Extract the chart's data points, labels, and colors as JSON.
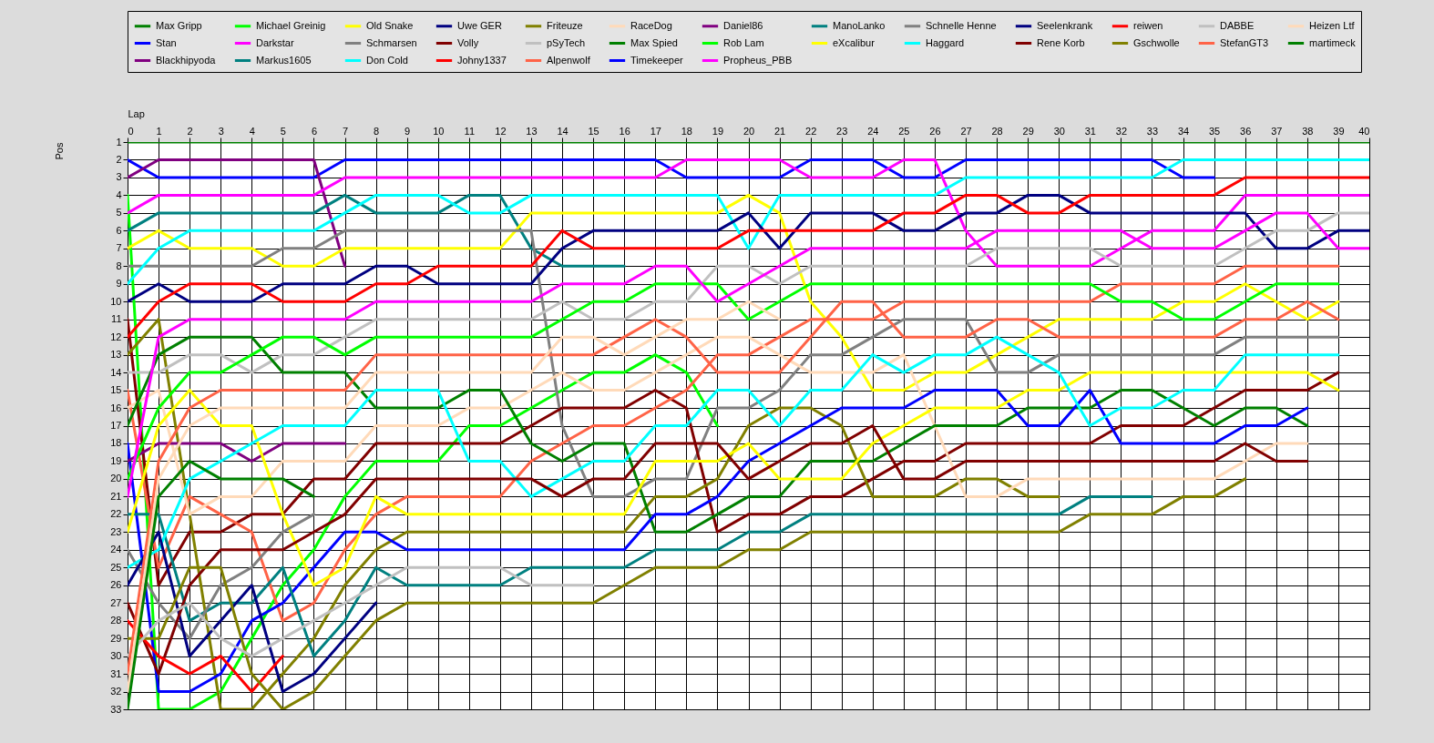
{
  "chart_data": {
    "type": "line",
    "xlabel": "Lap",
    "ylabel": "Pos",
    "x": [
      0,
      1,
      2,
      3,
      4,
      5,
      6,
      7,
      8,
      9,
      10,
      11,
      12,
      13,
      14,
      15,
      16,
      17,
      18,
      19,
      20,
      21,
      22,
      23,
      24,
      25,
      26,
      27,
      28,
      29,
      30,
      31,
      32,
      33,
      34,
      35,
      36,
      37,
      38,
      39,
      40
    ],
    "xlim": [
      0,
      40
    ],
    "xticks": [
      0,
      1,
      2,
      3,
      4,
      5,
      6,
      7,
      8,
      9,
      10,
      11,
      12,
      13,
      14,
      15,
      16,
      17,
      18,
      19,
      20,
      21,
      22,
      23,
      24,
      25,
      26,
      27,
      28,
      29,
      30,
      31,
      32,
      33,
      34,
      35,
      36,
      37,
      38,
      39,
      40
    ],
    "ylim": [
      33,
      1
    ],
    "yticks": [
      1,
      2,
      3,
      4,
      5,
      6,
      7,
      8,
      9,
      10,
      11,
      12,
      13,
      14,
      15,
      16,
      17,
      18,
      19,
      20,
      21,
      22,
      23,
      24,
      25,
      26,
      27,
      28,
      29,
      30,
      31,
      32,
      33
    ],
    "grid": true,
    "legend": "top",
    "series": [
      {
        "name": "Max Gripp",
        "color": "#008000",
        "values": [
          1,
          1,
          1,
          1,
          1,
          1,
          1,
          1,
          1,
          1,
          1,
          1,
          1,
          1,
          1,
          1,
          1,
          1,
          1,
          1,
          1,
          1,
          1,
          1,
          1,
          1,
          1,
          1,
          1,
          1,
          1,
          1,
          1,
          1,
          1,
          1,
          1,
          1,
          1,
          1,
          1
        ]
      },
      {
        "name": "Stan",
        "color": "#0000ff",
        "values": [
          2,
          3,
          3,
          3,
          3,
          3,
          3,
          2,
          2,
          2,
          2,
          2,
          2,
          2,
          2,
          2,
          2,
          2,
          3,
          3,
          3,
          3,
          2,
          2,
          2,
          3,
          3,
          2,
          2,
          2,
          2,
          2,
          2,
          2,
          3,
          3,
          null,
          null,
          null,
          null,
          null
        ]
      },
      {
        "name": "Blackhipyoda",
        "color": "#800080",
        "values": [
          3,
          2,
          2,
          2,
          2,
          2,
          2,
          8,
          null,
          null,
          null,
          null,
          null,
          null,
          null,
          null,
          null,
          null,
          null,
          null,
          null,
          null,
          null,
          null,
          null,
          null,
          null,
          null,
          null,
          null,
          null,
          null,
          null,
          null,
          null,
          null,
          null,
          null,
          null,
          null,
          null
        ]
      },
      {
        "name": "Michael Greinig",
        "color": "#00ff00",
        "values": [
          4,
          33,
          33,
          32,
          29,
          26,
          24,
          21,
          19,
          19,
          19,
          17,
          17,
          16,
          15,
          14,
          14,
          13,
          14,
          17,
          null,
          null,
          null,
          null,
          null,
          null,
          null,
          null,
          null,
          null,
          null,
          null,
          null,
          null,
          null,
          null,
          null,
          null,
          null,
          null,
          null
        ]
      },
      {
        "name": "Darkstar",
        "color": "#ff00ff",
        "values": [
          5,
          4,
          4,
          4,
          4,
          4,
          4,
          3,
          3,
          3,
          3,
          3,
          3,
          3,
          3,
          3,
          3,
          3,
          2,
          2,
          2,
          2,
          3,
          3,
          3,
          2,
          2,
          6,
          8,
          8,
          8,
          8,
          7,
          6,
          6,
          6,
          4,
          4,
          4,
          4,
          4
        ]
      },
      {
        "name": "Markus1605",
        "color": "#008080",
        "values": [
          6,
          5,
          5,
          5,
          5,
          5,
          5,
          4,
          5,
          5,
          5,
          4,
          4,
          7,
          8,
          8,
          8,
          null,
          null,
          null,
          null,
          null,
          null,
          null,
          null,
          null,
          null,
          null,
          null,
          null,
          null,
          null,
          null,
          null,
          null,
          null,
          null,
          null,
          null,
          null,
          null
        ]
      },
      {
        "name": "Old Snake",
        "color": "#ffff00",
        "values": [
          7,
          6,
          7,
          7,
          7,
          8,
          8,
          7,
          7,
          7,
          7,
          7,
          7,
          5,
          5,
          5,
          5,
          5,
          5,
          5,
          4,
          5,
          10,
          12,
          15,
          15,
          14,
          14,
          13,
          12,
          11,
          11,
          11,
          11,
          10,
          10,
          9,
          10,
          11,
          10,
          null
        ]
      },
      {
        "name": "Schmarsen",
        "color": "#808080",
        "values": [
          8,
          8,
          8,
          8,
          8,
          7,
          7,
          6,
          6,
          6,
          6,
          6,
          6,
          6,
          17,
          21,
          21,
          20,
          20,
          16,
          16,
          15,
          13,
          13,
          12,
          11,
          11,
          11,
          14,
          14,
          13,
          13,
          13,
          13,
          13,
          13,
          12,
          12,
          12,
          12,
          null
        ]
      },
      {
        "name": "Don Cold",
        "color": "#00ffff",
        "values": [
          9,
          7,
          6,
          6,
          6,
          6,
          6,
          5,
          4,
          4,
          4,
          5,
          5,
          4,
          4,
          4,
          4,
          4,
          4,
          4,
          7,
          4,
          4,
          4,
          4,
          4,
          4,
          3,
          3,
          3,
          3,
          3,
          3,
          3,
          2,
          2,
          2,
          2,
          2,
          2,
          2
        ]
      },
      {
        "name": "Uwe GER",
        "color": "#000080",
        "values": [
          10,
          9,
          10,
          10,
          10,
          9,
          9,
          9,
          8,
          8,
          9,
          9,
          9,
          9,
          7,
          6,
          6,
          6,
          6,
          6,
          5,
          7,
          5,
          5,
          5,
          6,
          6,
          5,
          5,
          4,
          4,
          5,
          5,
          5,
          5,
          5,
          5,
          7,
          7,
          6,
          6
        ]
      },
      {
        "name": "Volly",
        "color": "#800000",
        "values": [
          11,
          26,
          23,
          23,
          22,
          22,
          20,
          20,
          18,
          18,
          18,
          18,
          18,
          17,
          16,
          16,
          16,
          15,
          16,
          23,
          22,
          22,
          21,
          21,
          20,
          19,
          19,
          18,
          18,
          18,
          18,
          18,
          17,
          17,
          17,
          16,
          15,
          15,
          15,
          14,
          null
        ]
      },
      {
        "name": "Johny1337",
        "color": "#ff0000",
        "values": [
          12,
          10,
          9,
          9,
          9,
          10,
          10,
          10,
          9,
          9,
          8,
          8,
          8,
          8,
          6,
          7,
          7,
          7,
          7,
          7,
          6,
          6,
          6,
          6,
          6,
          5,
          5,
          4,
          4,
          5,
          5,
          4,
          4,
          4,
          4,
          4,
          3,
          3,
          3,
          3,
          3
        ]
      },
      {
        "name": "Friteuze",
        "color": "#808000",
        "values": [
          13,
          11,
          22,
          33,
          33,
          31,
          29,
          26,
          24,
          23,
          23,
          23,
          23,
          23,
          23,
          23,
          23,
          21,
          21,
          20,
          17,
          16,
          16,
          17,
          21,
          21,
          21,
          20,
          20,
          21,
          21,
          null,
          null,
          null,
          null,
          null,
          null,
          null,
          null,
          null,
          null
        ]
      },
      {
        "name": "pSyTech",
        "color": "#c0c0c0",
        "values": [
          14,
          14,
          13,
          13,
          14,
          13,
          13,
          12,
          11,
          11,
          11,
          11,
          11,
          11,
          10,
          11,
          11,
          10,
          10,
          8,
          8,
          9,
          8,
          8,
          8,
          8,
          8,
          8,
          7,
          7,
          7,
          7,
          8,
          8,
          8,
          8,
          7,
          6,
          6,
          5,
          5
        ]
      },
      {
        "name": "Alpenwolf",
        "color": "#ff6347",
        "values": [
          15,
          25,
          21,
          22,
          23,
          28,
          27,
          24,
          22,
          21,
          21,
          21,
          21,
          19,
          18,
          17,
          17,
          16,
          15,
          13,
          13,
          12,
          11,
          11,
          11,
          10,
          10,
          10,
          10,
          10,
          10,
          10,
          9,
          9,
          9,
          9,
          8,
          8,
          8,
          8,
          null
        ]
      },
      {
        "name": "RaceDog",
        "color": "#ffdab9",
        "values": [
          16,
          15,
          22,
          21,
          21,
          19,
          19,
          19,
          17,
          17,
          17,
          16,
          16,
          15,
          14,
          15,
          15,
          14,
          13,
          12,
          12,
          13,
          14,
          14,
          14,
          13,
          17,
          21,
          21,
          20,
          20,
          20,
          20,
          20,
          20,
          20,
          19,
          18,
          18,
          null,
          null
        ]
      },
      {
        "name": "Max Spied",
        "color": "#008000",
        "values": [
          17,
          13,
          12,
          12,
          12,
          14,
          14,
          14,
          16,
          16,
          16,
          15,
          15,
          18,
          19,
          18,
          18,
          23,
          23,
          22,
          21,
          21,
          19,
          19,
          19,
          18,
          17,
          17,
          17,
          16,
          16,
          16,
          15,
          15,
          16,
          17,
          16,
          16,
          17,
          null,
          null
        ]
      },
      {
        "name": "Timekeeper",
        "color": "#0000ff",
        "values": [
          18,
          32,
          32,
          31,
          28,
          27,
          25,
          23,
          23,
          24,
          24,
          24,
          24,
          24,
          24,
          24,
          24,
          22,
          22,
          21,
          19,
          18,
          17,
          16,
          16,
          16,
          15,
          15,
          15,
          17,
          17,
          15,
          18,
          18,
          18,
          18,
          17,
          17,
          16,
          null,
          null
        ]
      },
      {
        "name": "Daniel86",
        "color": "#800080",
        "values": [
          19,
          18,
          18,
          18,
          19,
          18,
          18,
          18,
          null,
          null,
          null,
          null,
          null,
          null,
          null,
          null,
          null,
          null,
          null,
          null,
          null,
          null,
          null,
          null,
          null,
          null,
          null,
          null,
          null,
          null,
          null,
          null,
          null,
          null,
          null,
          null,
          null,
          null,
          null,
          null,
          null
        ]
      },
      {
        "name": "Rob Lam",
        "color": "#00ff00",
        "values": [
          20,
          16,
          14,
          14,
          13,
          12,
          12,
          13,
          12,
          12,
          12,
          12,
          12,
          12,
          11,
          10,
          10,
          9,
          9,
          9,
          11,
          10,
          9,
          9,
          9,
          9,
          9,
          9,
          9,
          9,
          9,
          9,
          10,
          10,
          11,
          11,
          10,
          9,
          9,
          9,
          null
        ]
      },
      {
        "name": "Propheus_PBB",
        "color": "#ff00ff",
        "values": [
          21,
          12,
          11,
          11,
          11,
          11,
          11,
          11,
          10,
          10,
          10,
          10,
          10,
          10,
          9,
          9,
          9,
          8,
          8,
          10,
          9,
          8,
          7,
          7,
          7,
          7,
          7,
          7,
          6,
          6,
          6,
          6,
          6,
          7,
          7,
          7,
          6,
          5,
          5,
          7,
          7
        ]
      },
      {
        "name": "ManoLanko",
        "color": "#008080",
        "values": [
          22,
          22,
          28,
          27,
          27,
          25,
          30,
          28,
          25,
          26,
          26,
          26,
          26,
          25,
          25,
          25,
          25,
          24,
          24,
          24,
          23,
          23,
          22,
          22,
          22,
          22,
          22,
          22,
          22,
          22,
          22,
          21,
          21,
          21,
          null,
          null,
          null,
          null,
          null,
          null,
          null
        ]
      },
      {
        "name": "eXcalibur",
        "color": "#ffff00",
        "values": [
          23,
          17,
          15,
          17,
          17,
          22,
          26,
          25,
          21,
          22,
          22,
          22,
          22,
          22,
          22,
          22,
          22,
          19,
          19,
          19,
          18,
          20,
          20,
          20,
          18,
          17,
          16,
          16,
          16,
          15,
          15,
          14,
          14,
          14,
          14,
          14,
          14,
          14,
          14,
          15,
          null
        ]
      },
      {
        "name": "Schnelle Henne",
        "color": "#808080",
        "values": [
          24,
          27,
          29,
          26,
          25,
          23,
          22,
          null,
          null,
          null,
          null,
          null,
          null,
          null,
          null,
          null,
          null,
          null,
          null,
          null,
          null,
          null,
          null,
          null,
          null,
          null,
          null,
          null,
          null,
          null,
          null,
          null,
          null,
          null,
          null,
          null,
          null,
          null,
          null,
          null,
          null
        ]
      },
      {
        "name": "Haggard",
        "color": "#00ffff",
        "values": [
          25,
          24,
          20,
          19,
          18,
          17,
          17,
          17,
          15,
          15,
          15,
          19,
          19,
          21,
          20,
          19,
          19,
          17,
          17,
          15,
          15,
          17,
          15,
          15,
          13,
          14,
          13,
          13,
          12,
          13,
          14,
          17,
          16,
          16,
          15,
          15,
          13,
          13,
          13,
          13,
          null
        ]
      },
      {
        "name": "Seelenkrank",
        "color": "#000080",
        "values": [
          26,
          23,
          30,
          28,
          26,
          32,
          31,
          29,
          27,
          null,
          null,
          null,
          null,
          null,
          null,
          null,
          null,
          null,
          null,
          null,
          null,
          null,
          null,
          null,
          null,
          null,
          null,
          null,
          null,
          null,
          null,
          null,
          null,
          null,
          null,
          null,
          null,
          null,
          null,
          null,
          null
        ]
      },
      {
        "name": "Rene Korb",
        "color": "#800000",
        "values": [
          27,
          31,
          26,
          24,
          24,
          24,
          23,
          22,
          20,
          20,
          20,
          20,
          20,
          20,
          21,
          20,
          20,
          18,
          18,
          18,
          20,
          19,
          18,
          18,
          17,
          20,
          20,
          19,
          19,
          19,
          19,
          19,
          19,
          19,
          19,
          19,
          18,
          19,
          19,
          null,
          null
        ]
      },
      {
        "name": "reiwen",
        "color": "#ff0000",
        "values": [
          28,
          30,
          31,
          30,
          32,
          30,
          null,
          null,
          null,
          null,
          null,
          null,
          null,
          null,
          null,
          null,
          null,
          null,
          null,
          null,
          null,
          null,
          null,
          null,
          null,
          null,
          null,
          null,
          null,
          null,
          null,
          null,
          null,
          null,
          null,
          null,
          null,
          null,
          null,
          null,
          null
        ]
      },
      {
        "name": "Gschwolle",
        "color": "#808000",
        "values": [
          29,
          29,
          25,
          25,
          31,
          33,
          32,
          30,
          28,
          27,
          27,
          27,
          27,
          27,
          27,
          27,
          26,
          25,
          25,
          25,
          24,
          24,
          23,
          23,
          23,
          23,
          23,
          23,
          23,
          23,
          23,
          22,
          22,
          22,
          21,
          21,
          20,
          null,
          null,
          null,
          null
        ]
      },
      {
        "name": "DABBE",
        "color": "#c0c0c0",
        "values": [
          30,
          28,
          27,
          29,
          30,
          29,
          28,
          27,
          26,
          25,
          25,
          25,
          25,
          26,
          26,
          26,
          null,
          null,
          null,
          null,
          null,
          null,
          null,
          null,
          null,
          null,
          null,
          null,
          null,
          null,
          null,
          null,
          null,
          null,
          null,
          null,
          null,
          null,
          null,
          null,
          null
        ]
      },
      {
        "name": "StefanGT3",
        "color": "#ff6347",
        "values": [
          31,
          19,
          16,
          15,
          15,
          15,
          15,
          15,
          13,
          13,
          13,
          13,
          13,
          13,
          13,
          13,
          12,
          11,
          12,
          14,
          14,
          14,
          12,
          10,
          10,
          12,
          12,
          12,
          11,
          11,
          12,
          12,
          12,
          12,
          12,
          12,
          11,
          11,
          10,
          11,
          null
        ]
      },
      {
        "name": "Heizen Ltf",
        "color": "#ffdab9",
        "values": [
          32,
          20,
          17,
          16,
          16,
          16,
          16,
          16,
          14,
          14,
          14,
          14,
          14,
          14,
          12,
          12,
          13,
          12,
          11,
          11,
          10,
          11,
          null,
          null,
          null,
          null,
          null,
          null,
          null,
          null,
          null,
          null,
          null,
          null,
          null,
          null,
          null,
          null,
          null,
          null,
          null
        ]
      },
      {
        "name": "martimeck",
        "color": "#008000",
        "values": [
          33,
          21,
          19,
          20,
          20,
          20,
          21,
          null,
          null,
          null,
          null,
          null,
          null,
          null,
          null,
          null,
          null,
          null,
          null,
          null,
          null,
          null,
          null,
          null,
          null,
          null,
          null,
          null,
          null,
          null,
          null,
          null,
          null,
          null,
          null,
          null,
          null,
          null,
          null,
          null,
          null
        ]
      }
    ]
  }
}
